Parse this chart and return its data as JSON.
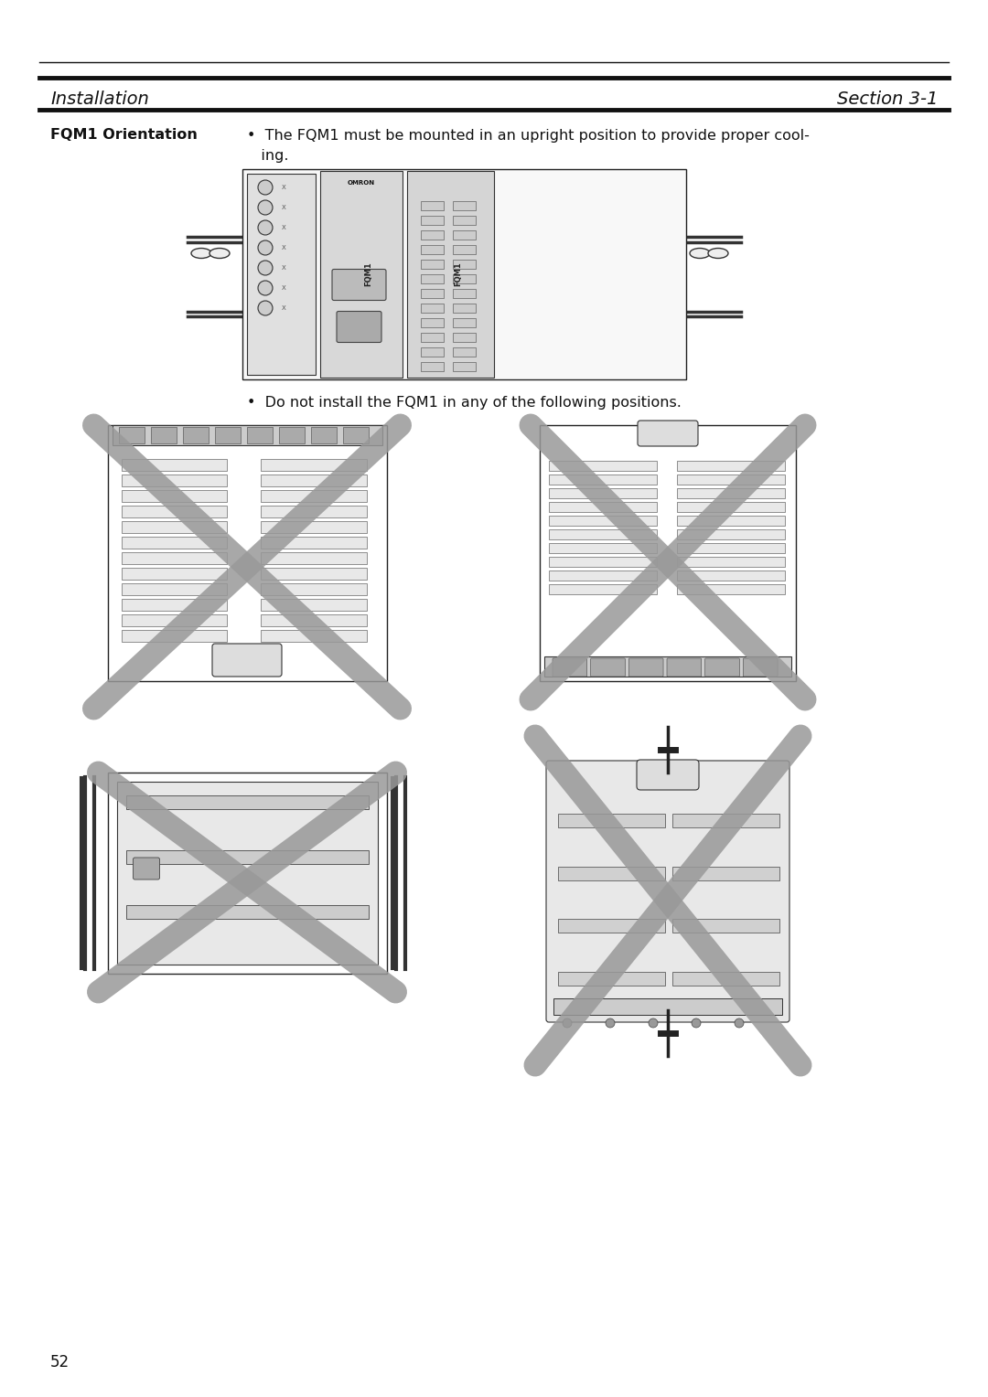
{
  "bg_color": "#ffffff",
  "header_line_color": "#111111",
  "header_left": "Installation",
  "header_right": "Section 3-1",
  "header_font_size": 14,
  "left_label": "FQM1 Orientation",
  "bullet1_line1": "•  The FQM1 must be mounted in an upright position to provide proper cool-",
  "bullet1_line2": "   ing.",
  "bullet2_text": "•  Do not install the FQM1 in any of the following positions.",
  "font_size_body": 11.5,
  "page_number": "52",
  "cross_color": "#999999",
  "cross_alpha": 0.9,
  "cross_linewidth": 18
}
